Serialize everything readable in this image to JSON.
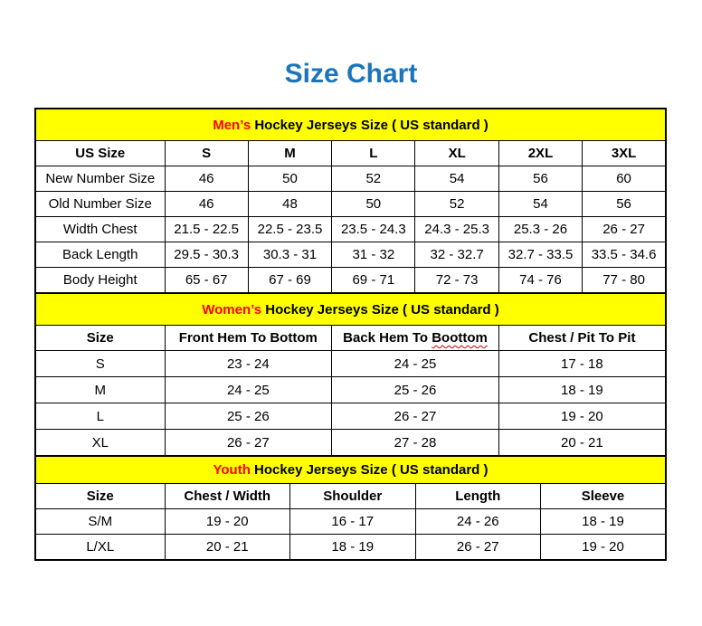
{
  "page": {
    "title": "Size Chart"
  },
  "colors": {
    "title_blue": "#1B75BC",
    "section_yellow": "#FFFF00",
    "highlight_red": "#FF0000",
    "border_black": "#000000",
    "squiggle_red": "#CC0000"
  },
  "men": {
    "title_highlight": "Men’s",
    "title_rest": " Hockey Jerseys Size ( US standard )",
    "columns": [
      "US Size",
      "S",
      "M",
      "L",
      "XL",
      "2XL",
      "3XL"
    ],
    "rows": [
      {
        "label": "New Number Size",
        "values": [
          "46",
          "50",
          "52",
          "54",
          "56",
          "60"
        ]
      },
      {
        "label": "Old Number Size",
        "values": [
          "46",
          "48",
          "50",
          "52",
          "54",
          "56"
        ]
      },
      {
        "label": "Width Chest",
        "values": [
          "21.5 - 22.5",
          "22.5 - 23.5",
          "23.5 - 24.3",
          "24.3 - 25.3",
          "25.3 - 26",
          "26 - 27"
        ]
      },
      {
        "label": "Back Length",
        "values": [
          "29.5 - 30.3",
          "30.3 - 31",
          "31 - 32",
          "32 - 32.7",
          "32.7 - 33.5",
          "33.5 - 34.6"
        ]
      },
      {
        "label": "Body Height",
        "values": [
          "65 - 67",
          "67 - 69",
          "69 - 71",
          "72 - 73",
          "74 - 76",
          "77 - 80"
        ]
      }
    ]
  },
  "women": {
    "title_highlight": "Women’s",
    "title_rest": " Hockey Jerseys Size ( US standard )",
    "columns": {
      "size": "Size",
      "front": "Front Hem To Bottom",
      "back_prefix": "Back Hem To ",
      "back_misspelled": "Boottom",
      "chest": "Chest / Pit To Pit"
    },
    "rows": [
      {
        "label": "S",
        "values": [
          "23 - 24",
          "24 - 25",
          "17 - 18"
        ]
      },
      {
        "label": "M",
        "values": [
          "24 - 25",
          "25 - 26",
          "18 - 19"
        ]
      },
      {
        "label": "L",
        "values": [
          "25 - 26",
          "26 - 27",
          "19 - 20"
        ]
      },
      {
        "label": "XL",
        "values": [
          "26 - 27",
          "27 - 28",
          "20 - 21"
        ]
      }
    ]
  },
  "youth": {
    "title_highlight": "Youth",
    "title_rest": " Hockey Jerseys Size ( US standard )",
    "columns": [
      "Size",
      "Chest / Width",
      "Shoulder",
      "Length",
      "Sleeve"
    ],
    "rows": [
      {
        "label": "S/M",
        "values": [
          "19 - 20",
          "16 - 17",
          "24 - 26",
          "18 - 19"
        ]
      },
      {
        "label": "L/XL",
        "values": [
          "20 - 21",
          "18 - 19",
          "26 - 27",
          "19 - 20"
        ]
      }
    ]
  }
}
